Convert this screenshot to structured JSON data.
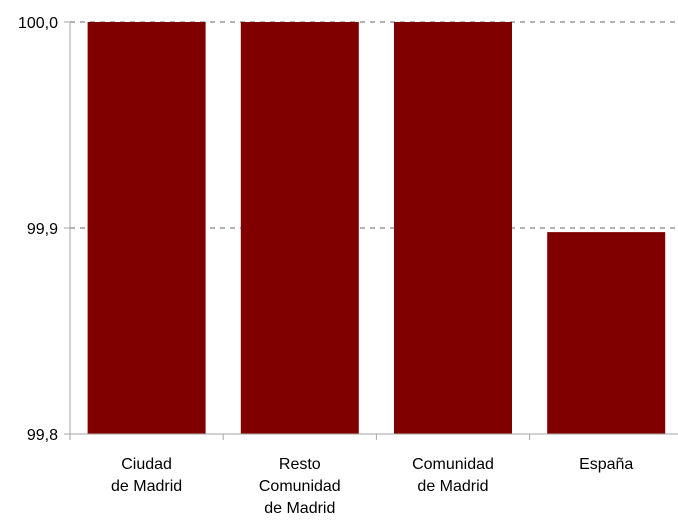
{
  "chart_data": {
    "type": "bar",
    "categories": [
      [
        "Ciudad",
        "de Madrid"
      ],
      [
        "Resto",
        "Comunidad",
        "de Madrid"
      ],
      [
        "Comunidad",
        "de Madrid"
      ],
      [
        "España"
      ]
    ],
    "values": [
      100.0,
      100.0,
      100.0,
      99.898
    ],
    "yticks": [
      "99,8",
      "99,9",
      "100,0"
    ],
    "ylim": [
      99.8,
      100.0
    ],
    "grid": true,
    "bar_color": "#800000",
    "grid_color": "#b3b3b3",
    "axis_color": "#a6a6a6"
  }
}
